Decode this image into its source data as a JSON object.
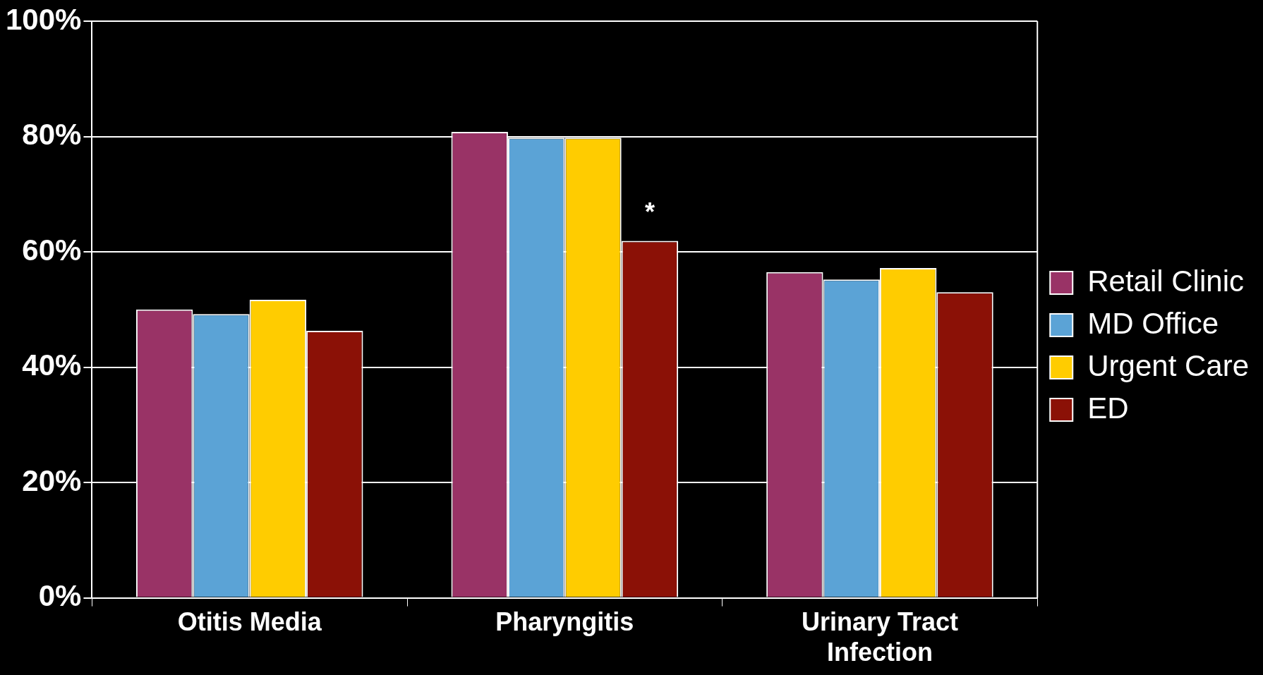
{
  "chart_data": {
    "type": "bar",
    "categories": [
      "Otitis Media",
      "Pharyngitis",
      "Urinary Tract Infection"
    ],
    "series": [
      {
        "name": "Retail Clinic",
        "color": "#993366",
        "values": [
          50,
          80.8,
          56.5
        ]
      },
      {
        "name": "MD Office",
        "color": "#5ba3d6",
        "values": [
          49.2,
          79.8,
          55.2
        ]
      },
      {
        "name": "Urgent Care",
        "color": "#ffcc00",
        "values": [
          51.7,
          79.8,
          57.2
        ]
      },
      {
        "name": "ED",
        "color": "#8b1106",
        "values": [
          46.3,
          61.9,
          53
        ]
      }
    ],
    "ylim": [
      0,
      100
    ],
    "yticks": [
      {
        "value": 0,
        "label": "0%"
      },
      {
        "value": 20,
        "label": "20%"
      },
      {
        "value": 40,
        "label": "40%"
      },
      {
        "value": 60,
        "label": "60%"
      },
      {
        "value": 80,
        "label": "80%"
      },
      {
        "value": 100,
        "label": "100%"
      }
    ],
    "grid": "y",
    "legend": "right",
    "annotations": [
      "*"
    ]
  }
}
